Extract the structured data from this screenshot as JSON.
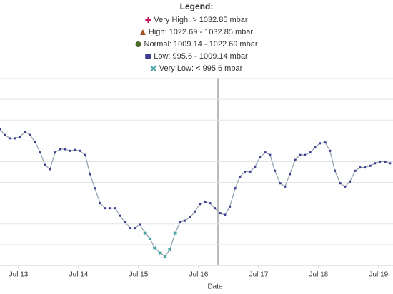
{
  "chart_data": {
    "type": "line",
    "legend_title": "Legend:",
    "legend": [
      {
        "label": "Very High: > 1032.85 mbar",
        "marker": "plus",
        "color": "#c2185b",
        "min": 1032.85
      },
      {
        "label": "High: 1022.69 - 1032.85 mbar",
        "marker": "triangle",
        "color": "#a0522d",
        "min": 1022.69
      },
      {
        "label": "Normal: 1009.14 - 1022.69 mbar",
        "marker": "circle",
        "color": "#4b6b2a",
        "min": 1009.14
      },
      {
        "label": "Low: 995.6 - 1009.14 mbar",
        "marker": "square",
        "color": "#3f3d8f",
        "min": 995.6
      },
      {
        "label": "Very Low: < 995.6 mbar",
        "marker": "cross",
        "color": "#4aa3a3"
      }
    ],
    "x_label": "Date",
    "x": [
      12.69,
      12.77,
      12.86,
      12.94,
      13.02,
      13.11,
      13.19,
      13.27,
      13.36,
      13.44,
      13.52,
      13.61,
      13.69,
      13.77,
      13.86,
      13.94,
      14.02,
      14.11,
      14.19,
      14.27,
      14.36,
      14.44,
      14.52,
      14.61,
      14.69,
      14.77,
      14.86,
      14.94,
      15.02,
      15.11,
      15.19,
      15.27,
      15.36,
      15.44,
      15.52,
      15.61,
      15.69,
      15.77,
      15.86,
      15.94,
      16.02,
      16.11,
      16.19,
      16.27,
      16.36,
      16.44,
      16.52,
      16.61,
      16.69,
      16.77,
      16.86,
      16.94,
      17.02,
      17.11,
      17.19,
      17.27,
      17.36,
      17.44,
      17.52,
      17.61,
      17.69,
      17.77,
      17.86,
      17.94,
      18.02,
      18.11,
      18.19,
      18.27,
      18.36,
      18.44,
      18.52,
      18.61,
      18.69,
      18.77,
      18.86,
      18.94,
      19.02,
      19.11,
      19.19
    ],
    "values": [
      1007.9,
      1007.2,
      1006.8,
      1006.8,
      1007.0,
      1007.6,
      1007.2,
      1006.4,
      1005.1,
      1003.6,
      1003.1,
      1005.1,
      1005.5,
      1005.5,
      1005.3,
      1005.4,
      1005.3,
      1004.8,
      1002.5,
      1000.8,
      999.0,
      998.4,
      998.4,
      998.4,
      997.5,
      996.7,
      996.0,
      996.0,
      996.4,
      995.4,
      994.7,
      993.6,
      993.0,
      992.6,
      993.4,
      995.4,
      996.7,
      996.9,
      997.3,
      998.0,
      998.9,
      999.1,
      999.0,
      998.4,
      997.8,
      997.6,
      998.6,
      1000.8,
      1002.2,
      1002.8,
      1002.8,
      1003.4,
      1004.5,
      1005.1,
      1004.8,
      1002.9,
      1001.4,
      1001.0,
      1002.5,
      1004.2,
      1004.8,
      1004.8,
      1005.1,
      1005.7,
      1006.2,
      1006.3,
      1005.3,
      1002.9,
      1001.4,
      1001.0,
      1001.6,
      1002.9,
      1003.3,
      1003.3,
      1003.5,
      1003.8,
      1004.0,
      1004.0,
      1003.8
    ],
    "line_color": "#8fa0b0",
    "xlim": [
      12.69,
      19.24
    ],
    "xticks": [
      {
        "value": 13,
        "label": "Jul 13"
      },
      {
        "value": 14,
        "label": "Jul 14"
      },
      {
        "value": 15,
        "label": "Jul 15"
      },
      {
        "value": 16,
        "label": "Jul 16"
      },
      {
        "value": 17,
        "label": "Jul 17"
      },
      {
        "value": 18,
        "label": "Jul 18"
      },
      {
        "value": 19,
        "label": "Jul 19"
      }
    ],
    "ylim": [
      991.5,
      1014
    ],
    "yticks": [
      994,
      996.5,
      999,
      1001.5,
      1004,
      1006.5,
      1009,
      1011.5,
      1014
    ],
    "grid": true
  }
}
